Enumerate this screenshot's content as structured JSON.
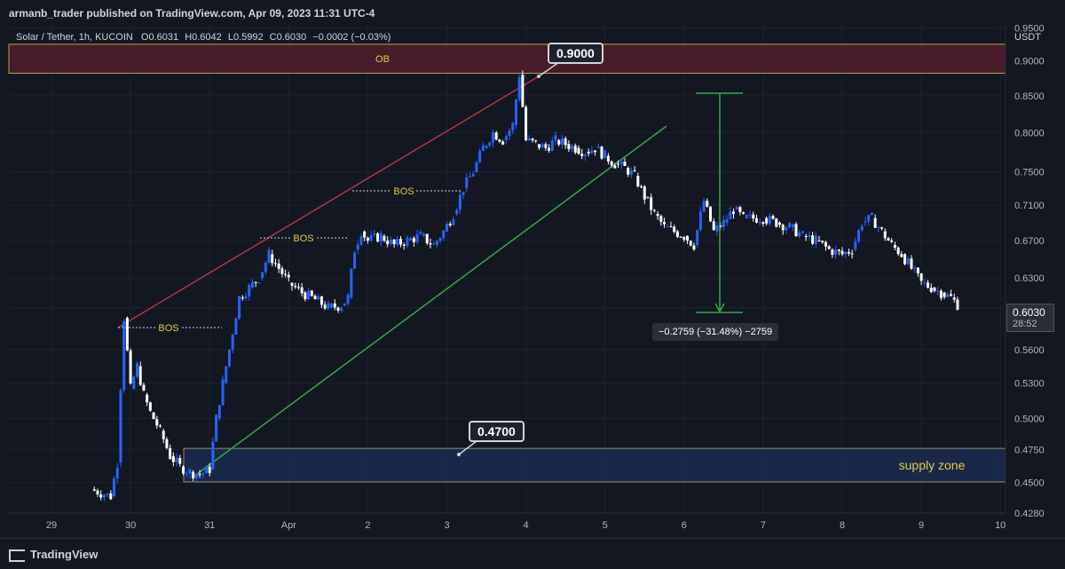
{
  "header": {
    "publisher": "armanb_trader published on TradingView.com, Apr 09, 2023 11:31 UTC-4"
  },
  "symbol": {
    "name": "Solar / Tether, 1h, KUCOIN",
    "open": "O0.6031",
    "high": "H0.6042",
    "low": "L0.5992",
    "close": "C0.6030",
    "change": "−0.0002 (−0.03%)"
  },
  "price_axis": {
    "currency": "USDT",
    "current_price": "0.6030",
    "countdown": "28:52"
  },
  "footer": {
    "brand": "TradingView"
  },
  "colors": {
    "background": "#131722",
    "up_candle": "#2962ff",
    "down_candle": "#ffffff",
    "red_trendline": "#b5343e",
    "green_trendline": "#3fa34d",
    "ob_zone": "#5a1e2c",
    "supply_zone": "#1b2a4e",
    "label_yellow": "#e3c94a"
  },
  "annotations": {
    "ob_label": "OB",
    "supply_label": "supply zone",
    "bos_labels": [
      "BOS",
      "BOS",
      "BOS"
    ],
    "callout_top": "0.9000",
    "callout_bottom": "0.4700",
    "measure": "−0.2759 (−31.48%) −2759"
  },
  "chart_data": {
    "type": "line",
    "title": "Solar / Tether, 1h, KUCOIN",
    "xlabel": "",
    "ylabel": "USDT",
    "log_scale": true,
    "ylim": [
      0.428,
      0.955
    ],
    "x_ticks": [
      "29",
      "30",
      "31",
      "Apr",
      "2",
      "3",
      "4",
      "5",
      "6",
      "7",
      "8",
      "9",
      "10"
    ],
    "y_ticks": [
      "0.4280",
      "0.4500",
      "0.4750",
      "0.5000",
      "0.5300",
      "0.5600",
      "0.6000",
      "0.6300",
      "0.6700",
      "0.7100",
      "0.7500",
      "0.8000",
      "0.8500",
      "0.9000",
      "0.9500"
    ],
    "series": [
      {
        "values": [
          [
            "03-29T12:00",
            0.445
          ],
          [
            "03-29T18:00",
            0.44
          ],
          [
            "03-29T20:00",
            0.465
          ],
          [
            "03-29T22:00",
            0.59
          ],
          [
            "03-30T00:00",
            0.525
          ],
          [
            "03-30T02:00",
            0.545
          ],
          [
            "03-30T04:00",
            0.52
          ],
          [
            "03-30T06:00",
            0.505
          ],
          [
            "03-30T09:00",
            0.49
          ],
          [
            "03-30T12:00",
            0.47
          ],
          [
            "03-30T15:00",
            0.462
          ],
          [
            "03-30T18:00",
            0.458
          ],
          [
            "03-30T21:00",
            0.456
          ],
          [
            "03-31T00:00",
            0.46
          ],
          [
            "03-31T02:00",
            0.5
          ],
          [
            "03-31T04:00",
            0.53
          ],
          [
            "03-31T06:00",
            0.56
          ],
          [
            "03-31T09:00",
            0.61
          ],
          [
            "03-31T12:00",
            0.62
          ],
          [
            "03-31T15:00",
            0.63
          ],
          [
            "03-31T18:00",
            0.655
          ],
          [
            "03-31T21:00",
            0.64
          ],
          [
            "04-01T00:00",
            0.625
          ],
          [
            "04-01T04:00",
            0.615
          ],
          [
            "04-01T08:00",
            0.608
          ],
          [
            "04-01T12:00",
            0.6
          ],
          [
            "04-01T16:00",
            0.602
          ],
          [
            "04-01T18:00",
            0.61
          ],
          [
            "04-01T20:00",
            0.66
          ],
          [
            "04-01T22:00",
            0.68
          ],
          [
            "04-02T00:00",
            0.67
          ],
          [
            "04-02T04:00",
            0.675
          ],
          [
            "04-02T08:00",
            0.665
          ],
          [
            "04-02T12:00",
            0.67
          ],
          [
            "04-02T16:00",
            0.675
          ],
          [
            "04-02T20:00",
            0.665
          ],
          [
            "04-02T23:00",
            0.68
          ],
          [
            "04-03T02:00",
            0.7
          ],
          [
            "04-03T05:00",
            0.73
          ],
          [
            "04-03T08:00",
            0.75
          ],
          [
            "04-03T11:00",
            0.78
          ],
          [
            "04-03T14:00",
            0.8
          ],
          [
            "04-03T17:00",
            0.79
          ],
          [
            "04-03T20:00",
            0.81
          ],
          [
            "04-03T22:00",
            0.88
          ],
          [
            "04-04T00:00",
            0.79
          ],
          [
            "04-04T03:00",
            0.785
          ],
          [
            "04-04T06:00",
            0.78
          ],
          [
            "04-04T09:00",
            0.79
          ],
          [
            "04-04T12:00",
            0.785
          ],
          [
            "04-04T15:00",
            0.78
          ],
          [
            "04-04T18:00",
            0.775
          ],
          [
            "04-04T21:00",
            0.78
          ],
          [
            "04-05T00:00",
            0.77
          ],
          [
            "04-05T03:00",
            0.76
          ],
          [
            "04-05T06:00",
            0.755
          ],
          [
            "04-05T09:00",
            0.745
          ],
          [
            "04-05T12:00",
            0.72
          ],
          [
            "04-05T15:00",
            0.7
          ],
          [
            "04-05T18:00",
            0.685
          ],
          [
            "04-05T21:00",
            0.68
          ],
          [
            "04-06T00:00",
            0.675
          ],
          [
            "04-06T03:00",
            0.665
          ],
          [
            "04-06T06:00",
            0.715
          ],
          [
            "04-06T09:00",
            0.68
          ],
          [
            "04-06T12:00",
            0.69
          ],
          [
            "04-06T15:00",
            0.705
          ],
          [
            "04-06T18:00",
            0.695
          ],
          [
            "04-06T21:00",
            0.695
          ],
          [
            "04-07T00:00",
            0.695
          ],
          [
            "04-07T04:00",
            0.69
          ],
          [
            "04-07T08:00",
            0.685
          ],
          [
            "04-07T12:00",
            0.675
          ],
          [
            "04-07T16:00",
            0.67
          ],
          [
            "04-07T20:00",
            0.66
          ],
          [
            "04-08T00:00",
            0.655
          ],
          [
            "04-08T03:00",
            0.66
          ],
          [
            "04-08T06:00",
            0.69
          ],
          [
            "04-08T09:00",
            0.695
          ],
          [
            "04-08T12:00",
            0.68
          ],
          [
            "04-08T15:00",
            0.665
          ],
          [
            "04-08T18:00",
            0.655
          ],
          [
            "04-08T21:00",
            0.64
          ],
          [
            "04-09T00:00",
            0.625
          ],
          [
            "04-09T03:00",
            0.62
          ],
          [
            "04-09T06:00",
            0.615
          ],
          [
            "04-09T09:00",
            0.61
          ],
          [
            "04-09T11:00",
            0.603
          ]
        ]
      }
    ]
  }
}
